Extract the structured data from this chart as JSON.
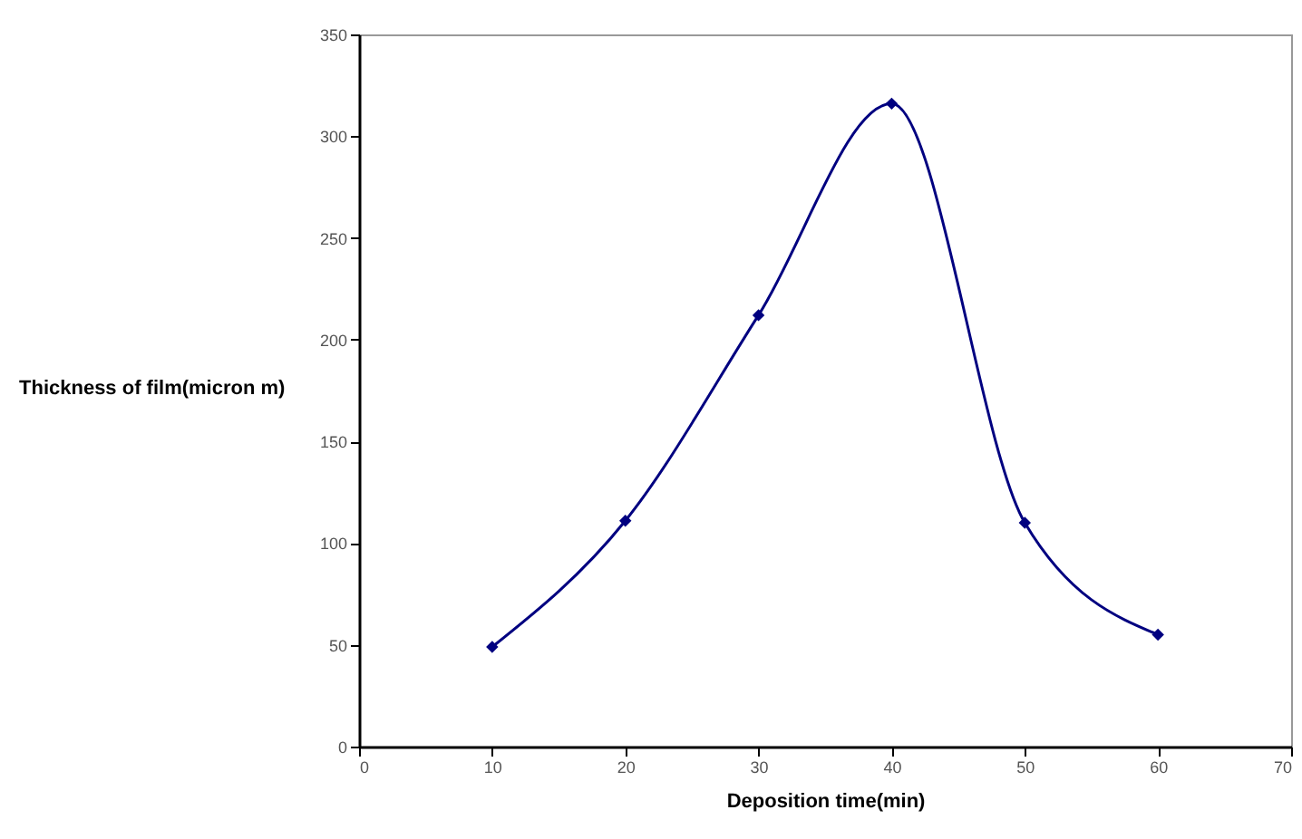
{
  "chart_data": {
    "type": "line",
    "xlabel": "Deposition time(min)",
    "ylabel": "Thickness of film(micron m)",
    "x": [
      10,
      20,
      30,
      40,
      50,
      60
    ],
    "series": [
      {
        "color": "#000080",
        "values": [
          49,
          111,
          212,
          316,
          110,
          55
        ]
      }
    ],
    "xlim": [
      0,
      70
    ],
    "xticks": [
      0,
      10,
      20,
      30,
      40,
      50,
      60,
      70
    ],
    "ylim": [
      0,
      350
    ],
    "yticks": [
      0,
      50,
      100,
      150,
      200,
      250,
      300,
      350
    ],
    "grid": false,
    "marker": "diamond",
    "line_style": "solid"
  }
}
